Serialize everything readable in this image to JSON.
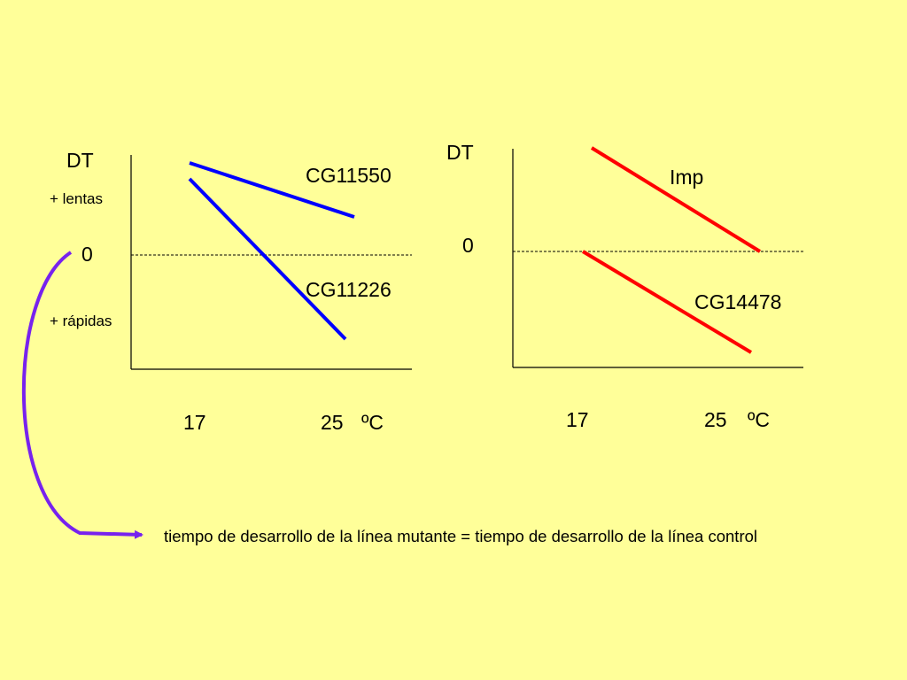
{
  "left_panel": {
    "y_axis_label": "DT",
    "upper_label": "+ lentas",
    "zero_label": "0",
    "lower_label": "+ rápidas",
    "x_ticks": [
      "17",
      "25"
    ],
    "x_unit": "ºC",
    "lines": [
      {
        "label": "CG11550",
        "color": "#0000FF"
      },
      {
        "label": "CG11226",
        "color": "#0000FF"
      }
    ]
  },
  "right_panel": {
    "y_axis_label": "DT",
    "zero_label": "0",
    "x_ticks": [
      "17",
      "25"
    ],
    "x_unit": "ºC",
    "lines": [
      {
        "label": "Imp",
        "color": "#FF0000"
      },
      {
        "label": "CG14478",
        "color": "#FF0000"
      }
    ]
  },
  "arrow": {
    "color": "#7722EE"
  },
  "footer_text": "tiempo de desarrollo de la línea mutante = tiempo de desarrollo de la línea control"
}
